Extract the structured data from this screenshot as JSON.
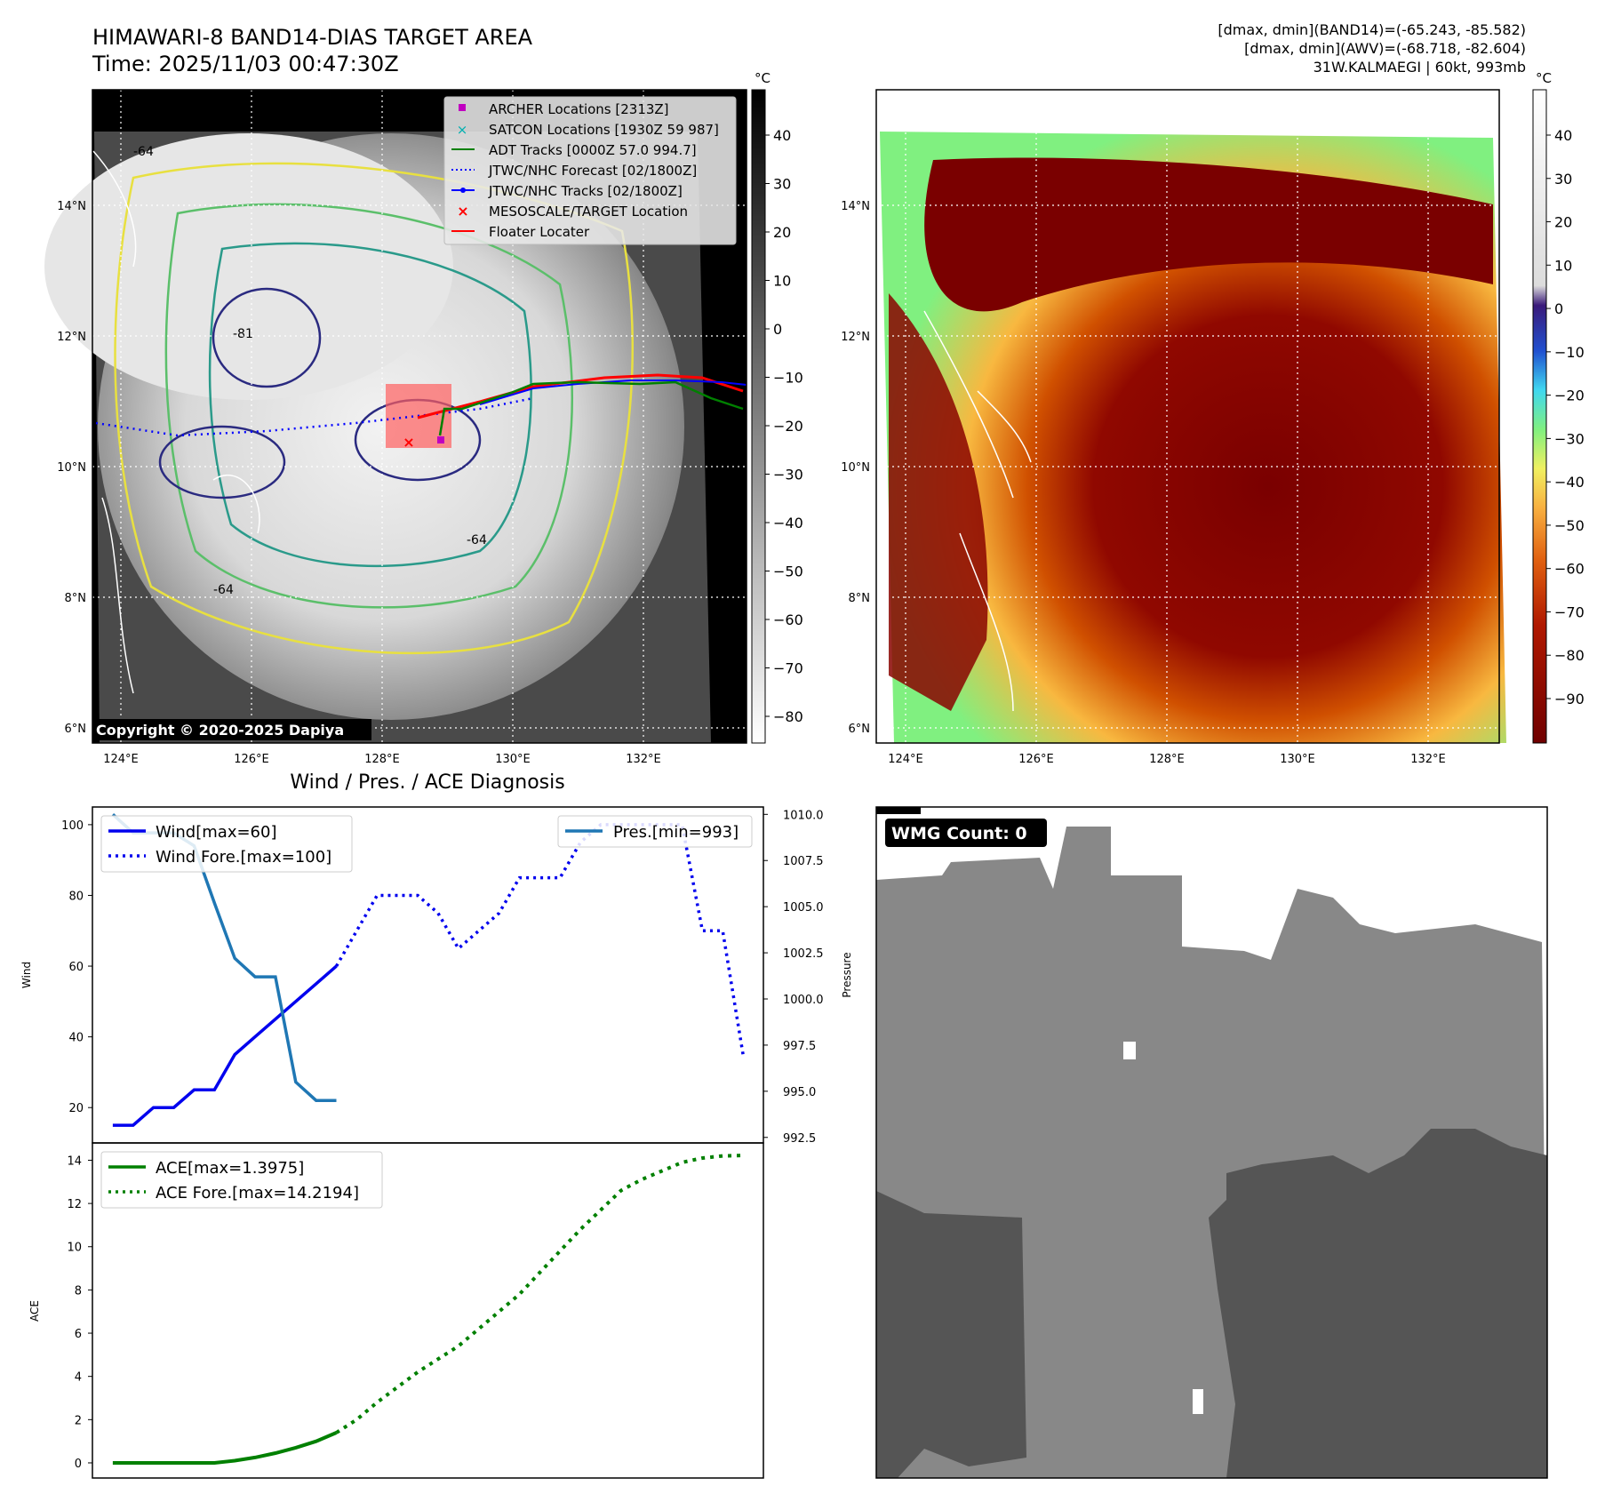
{
  "header": {
    "title_line1": "HIMAWARI-8 BAND14-DIAS TARGET AREA",
    "title_line2": "Time: 2025/11/03 00:47:30Z",
    "info_line1": "[dmax, dmin](BAND14)=(-65.243, -85.582)",
    "info_line2": "[dmax, dmin](AWV)=(-68.718, -82.604)",
    "info_line3": "31W.KALMAEGI | 60kt, 993mb"
  },
  "map_axes": {
    "lon_labels": [
      "124°E",
      "126°E",
      "128°E",
      "130°E",
      "132°E"
    ],
    "lat_labels": [
      "14°N",
      "12°N",
      "10°N",
      "8°N",
      "6°N"
    ]
  },
  "legend_ir": {
    "items": [
      {
        "label": "ARCHER Locations [2313Z]",
        "color": "#c000c0"
      },
      {
        "label": "SATCON Locations [1930Z 59 987]",
        "color": "#00b0b0"
      },
      {
        "label": "ADT Tracks [0000Z 57.0 994.7]",
        "color": "#008000"
      },
      {
        "label": "JTWC/NHC Forecast [02/1800Z]",
        "color": "#0000ff"
      },
      {
        "label": "JTWC/NHC Tracks [02/1800Z]",
        "color": "#0000ff"
      },
      {
        "label": "MESOSCALE/TARGET Location",
        "color": "#ff0000"
      },
      {
        "label": "Floater Locater",
        "color": "#ff0000"
      }
    ]
  },
  "contour_labels": {
    "a": "-81",
    "b": "-64",
    "c": "-64",
    "d": "-64"
  },
  "copyright": "Copyright © 2020-2025 Dapiya",
  "colorbar_gray": {
    "unit": "°C",
    "ticks": [
      "40",
      "30",
      "20",
      "10",
      "0",
      "−10",
      "−20",
      "−30",
      "−40",
      "−50",
      "−60",
      "−70",
      "−80"
    ]
  },
  "colorbar_color": {
    "unit": "°C",
    "ticks": [
      "40",
      "30",
      "20",
      "10",
      "0",
      "−10",
      "−20",
      "−30",
      "−40",
      "−50",
      "−60",
      "−70",
      "−80",
      "−90"
    ]
  },
  "wmg": {
    "label": "WMG Count: 0"
  },
  "chart_data": [
    {
      "type": "line",
      "title": "Wind / Pres. / ACE Diagnosis",
      "ylabel": "Wind",
      "ylabel_right": "Pressure",
      "ylim": [
        10,
        105
      ],
      "ylim_right": [
        992.2,
        1010.4
      ],
      "yticks": [
        20,
        40,
        60,
        80,
        100
      ],
      "yticks_right": [
        "1010.0",
        "1007.5",
        "1005.0",
        "1002.5",
        "1000.0",
        "997.5",
        "995.0",
        "992.5"
      ],
      "x_index_range": [
        -1,
        32
      ],
      "series": [
        {
          "name": "Wind[max=60]",
          "style": "solid",
          "color": "#0000ee",
          "x": [
            0,
            1,
            2,
            3,
            4,
            5,
            6,
            7,
            8,
            9,
            10,
            11
          ],
          "values": [
            15,
            15,
            20,
            20,
            25,
            25,
            35,
            40,
            45,
            50,
            55,
            60
          ]
        },
        {
          "name": "Wind Fore.[max=100]",
          "style": "dotted",
          "color": "#0000ee",
          "x": [
            11,
            12,
            13,
            14,
            15,
            16,
            17,
            18,
            19,
            20,
            21,
            22,
            23,
            24,
            25,
            26,
            27,
            28,
            29,
            30,
            31
          ],
          "values": [
            60,
            70,
            80,
            80,
            80,
            75,
            65,
            70,
            75,
            85,
            85,
            85,
            95,
            100,
            100,
            100,
            100,
            100,
            70,
            70,
            35
          ]
        },
        {
          "name": "Pres.[min=993]",
          "style": "solid",
          "color": "#1f77b4",
          "axis": "right",
          "x": [
            0,
            1,
            2,
            3,
            4,
            5,
            6,
            7,
            8,
            9,
            10,
            11
          ],
          "values": [
            1010,
            1009,
            1009,
            1009,
            1008.3,
            1005.2,
            1002.2,
            1001.2,
            1001.2,
            995.5,
            994.5,
            994.5
          ]
        }
      ]
    },
    {
      "type": "line",
      "ylabel": "ACE",
      "ylim": [
        -0.7,
        14.8
      ],
      "yticks": [
        0,
        2,
        4,
        6,
        8,
        10,
        12,
        14
      ],
      "x_index_range": [
        -1,
        32
      ],
      "series": [
        {
          "name": "ACE[max=1.3975]",
          "style": "solid",
          "color": "#008000",
          "x": [
            0,
            1,
            2,
            3,
            4,
            5,
            6,
            7,
            8,
            9,
            10,
            11
          ],
          "values": [
            0,
            0,
            0,
            0,
            0,
            0,
            0.1,
            0.25,
            0.45,
            0.7,
            1.0,
            1.3975
          ]
        },
        {
          "name": "ACE Fore.[max=14.2194]",
          "style": "dotted",
          "color": "#008000",
          "x": [
            11,
            12,
            13,
            14,
            15,
            16,
            17,
            18,
            19,
            20,
            21,
            22,
            23,
            24,
            25,
            26,
            27,
            28,
            29,
            30,
            31
          ],
          "values": [
            1.3975,
            2.0,
            2.8,
            3.5,
            4.2,
            4.8,
            5.4,
            6.2,
            7.0,
            7.8,
            8.8,
            9.8,
            10.8,
            11.7,
            12.6,
            13.1,
            13.5,
            13.9,
            14.1,
            14.2,
            14.2194
          ]
        }
      ]
    }
  ]
}
